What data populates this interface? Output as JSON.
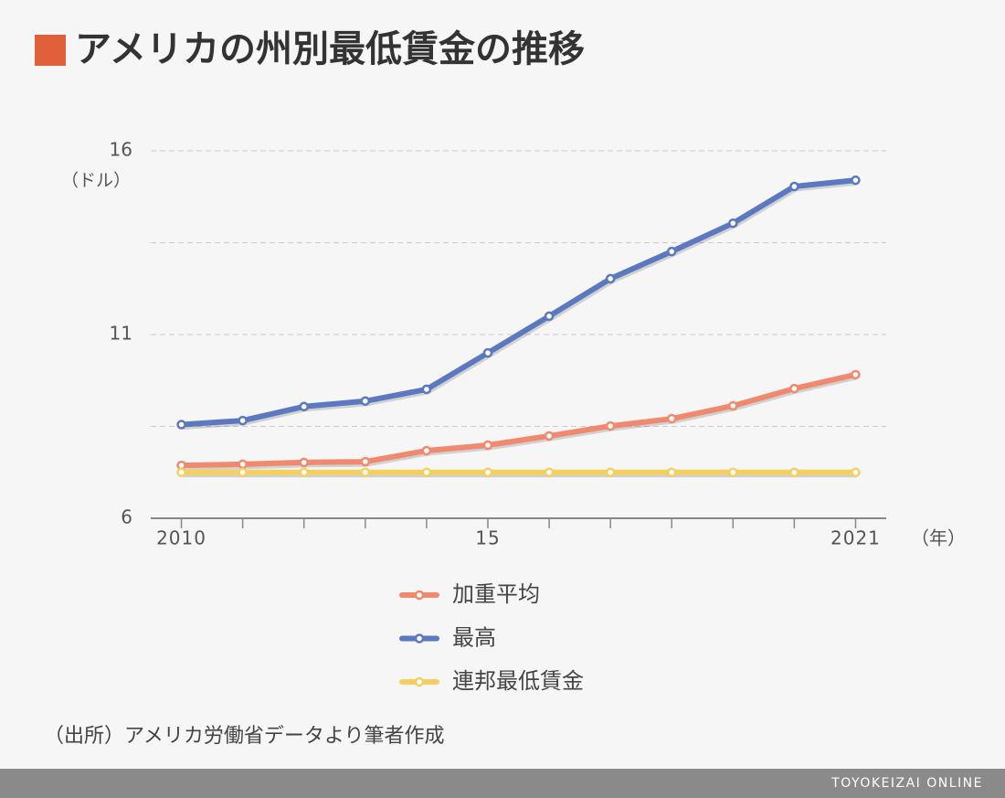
{
  "chart_data": {
    "type": "line",
    "title": "アメリカの州別最低賃金の推移",
    "y_label": "（ドル）",
    "x_label": "（年）",
    "x": [
      2010,
      2011,
      2012,
      2013,
      2014,
      2015,
      2016,
      2017,
      2018,
      2019,
      2020,
      2021
    ],
    "xlim": [
      2009.5,
      2021.5
    ],
    "xticks": [
      2010,
      {
        "value": 2015,
        "label": "15"
      },
      2021
    ],
    "ylim": [
      6,
      16
    ],
    "yticks": [
      6,
      11,
      16
    ],
    "ygrid": [
      8.5,
      11,
      13.5,
      16
    ],
    "grid": true,
    "series": [
      {
        "name": "加重平均",
        "color": "#f0896e",
        "values": [
          7.44,
          7.47,
          7.52,
          7.54,
          7.84,
          7.99,
          8.24,
          8.51,
          8.71,
          9.06,
          9.53,
          9.91
        ]
      },
      {
        "name": "最高",
        "color": "#5b78c0",
        "values": [
          8.55,
          8.66,
          9.04,
          9.19,
          9.51,
          10.5,
          11.5,
          12.52,
          13.26,
          14.03,
          15.03,
          15.2
        ]
      },
      {
        "name": "連邦最低賃金",
        "color": "#f5cf5f",
        "values": [
          7.25,
          7.25,
          7.25,
          7.25,
          7.25,
          7.25,
          7.25,
          7.25,
          7.25,
          7.25,
          7.25,
          7.25
        ]
      }
    ],
    "source": "（出所）アメリカ労働省データより筆者作成",
    "credit": "TOYOKEIZAI ONLINE"
  }
}
